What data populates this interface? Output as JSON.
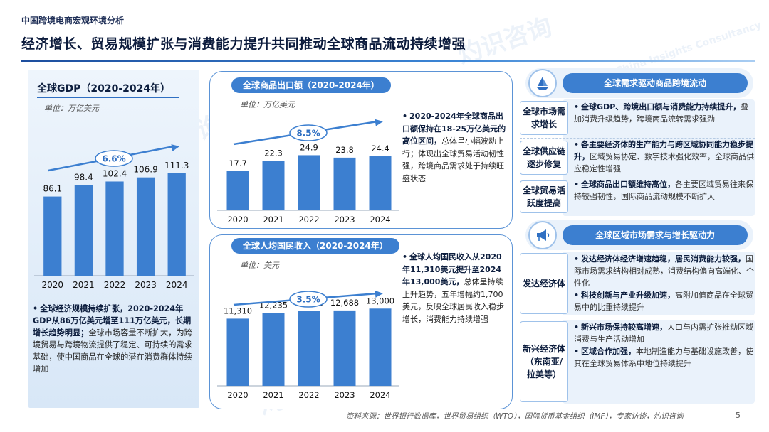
{
  "header": {
    "section_label": "中国跨境电商宏观环境分析",
    "title": "经济增长、贸易规模扩张与消费能力提升共同推动全球商品流动持续增强"
  },
  "watermarks": [
    "灼识咨询",
    "China Insights Consultancy",
    "CIC"
  ],
  "gdp_panel": {
    "title": "全球GDP（2020-2024年）",
    "unit": "单位：万亿美元",
    "cagr": "6.6%",
    "note_bold": "全球经济规模持续扩张，2020-2024年GDP从86万亿美元增至111万亿美元，长期增长趋势明显；",
    "note_rest": "全球市场容量不断扩大，为跨境贸易与跨境物流提供了稳定、可持续的需求基础，使中国商品在全球的潜在消费群体持续增加"
  },
  "export_panel": {
    "title": "全球商品出口额（2020-2024年）",
    "unit": "单位：万亿美元",
    "cagr": "8.5%",
    "note_bold": "2020-2024年全球商品出口额保持在18-25万亿美元的高位区间，",
    "note_rest": "总体呈小幅波动上行；体现出全球贸易活动韧性强，跨境商品需求处于持续旺盛状态"
  },
  "income_panel": {
    "title": "全球人均国民收入（2020-2024年）",
    "unit": "单位：美元",
    "cagr": "3.5%",
    "note_bold": "全球人均国民收入从2020年11,310美元提升至2024年13,000美元，",
    "note_rest": "总体呈持续上升趋势，五年增幅约1,700美元，反映全球居民收入稳步增长，消费能力持续增强"
  },
  "right_top": {
    "pill": "全球需求驱动商品跨境流动",
    "icon": "sailboat-icon",
    "rows": [
      {
        "label": "全球市场需求增长",
        "bold": "全球GDP、跨境出口额与消费能力持续提升，",
        "rest": "叠加消费升级趋势，跨境商品流转需求强劲"
      },
      {
        "label": "全球供应链逐步修复",
        "bold": "各主要经济体的生产能力与跨区域协同能力稳步提升，",
        "rest": "区域贸易协定、数字技术强化效率，全球商品供应稳定性增强"
      },
      {
        "label": "全球贸易活跃度提高",
        "bold": "全球商品出口额维持高位，",
        "rest": "各主要区域贸易往来保持较强韧性，国际商品流动规模不断扩大"
      }
    ]
  },
  "right_bottom": {
    "pill": "全球区域市场需求与增长驱动力",
    "icon": "megaphone-icon",
    "groups": [
      {
        "label": "发达经济体",
        "items": [
          {
            "bold": "发达经济体经济增速趋稳，居民消费能力较强，",
            "rest": "国际市场需求结构相对成熟，消费结构偏向高端化、个性化"
          },
          {
            "bold": "科技创新与产业升级加速，",
            "rest": "高附加值商品在全球贸易中的比重持续提升"
          }
        ]
      },
      {
        "label": "新兴经济体（东南亚/拉美等）",
        "items": [
          {
            "bold": "新兴市场保持较高增速，",
            "rest": "人口与内需扩张推动区域消费与生产活动增加"
          },
          {
            "bold": "区域合作加强，",
            "rest": "本地制造能力与基础设施改善，使其在全球贸易体系中地位持续提升"
          }
        ]
      }
    ]
  },
  "footer": {
    "source": "资料来源：世界银行数据库，世界贸易组织（WTO），国际货币基金组织（IMF），专家访谈，灼识咨询",
    "page": "5"
  },
  "colors": {
    "bar": "#3c7fd0",
    "accent": "#2f6fc2",
    "dark": "#0e1f3f"
  },
  "chart_data": [
    {
      "type": "bar",
      "title": "全球GDP（2020-2024年）",
      "unit": "万亿美元",
      "categories": [
        "2020",
        "2021",
        "2022",
        "2023",
        "2024"
      ],
      "values": [
        86.1,
        98.4,
        102.4,
        106.9,
        111.3
      ],
      "labels": [
        "86.1",
        "98.4",
        "102.4",
        "106.9",
        "111.3"
      ],
      "cagr": "6.6%"
    },
    {
      "type": "bar",
      "title": "全球商品出口额（2020-2024年）",
      "unit": "万亿美元",
      "categories": [
        "2020",
        "2021",
        "2022",
        "2023",
        "2024"
      ],
      "values": [
        17.7,
        22.3,
        24.9,
        23.8,
        24.4
      ],
      "labels": [
        "17.7",
        "22.3",
        "24.9",
        "23.8",
        "24.4"
      ],
      "cagr": "8.5%"
    },
    {
      "type": "bar",
      "title": "全球人均国民收入（2020-2024年）",
      "unit": "美元",
      "categories": [
        "2020",
        "2021",
        "2022",
        "2023",
        "2024"
      ],
      "values": [
        11310,
        12235,
        12602,
        12688,
        13000
      ],
      "labels": [
        "11,310",
        "12,235",
        "12,602",
        "12,688",
        "13,000"
      ],
      "cagr": "3.5%"
    }
  ]
}
